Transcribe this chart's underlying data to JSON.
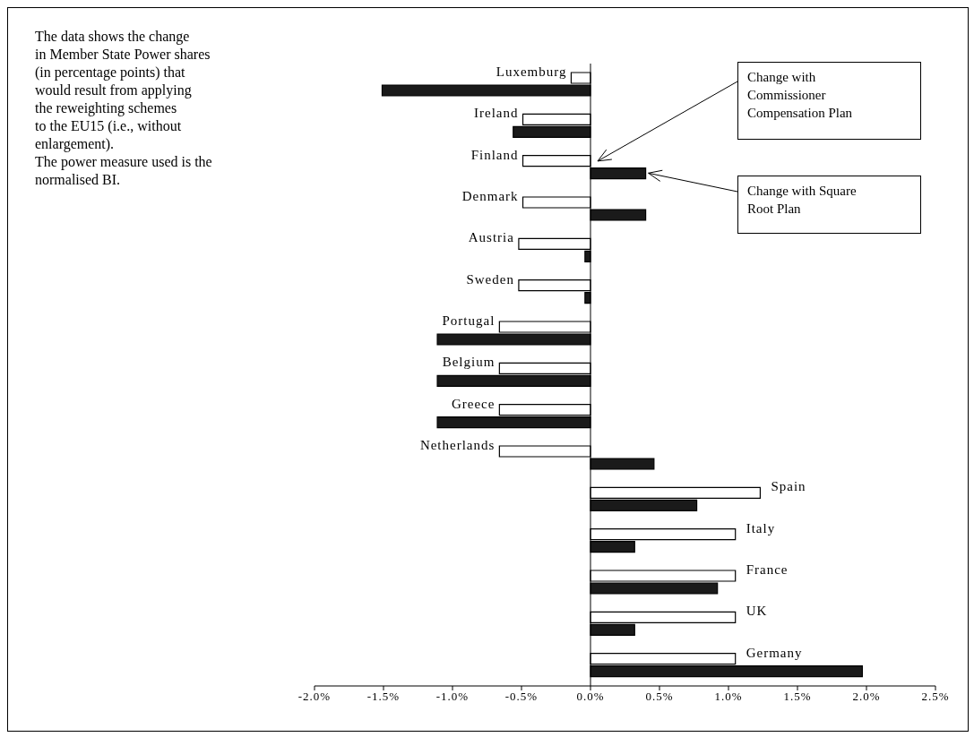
{
  "chart_data": {
    "type": "bar",
    "orientation": "horizontal",
    "categories": [
      "Luxemburg",
      "Ireland",
      "Finland",
      "Denmark",
      "Austria",
      "Sweden",
      "Portugal",
      "Belgium",
      "Greece",
      "Netherlands",
      "Spain",
      "Italy",
      "France",
      "UK",
      "Germany"
    ],
    "series": [
      {
        "name": "Change with Commissioner Compensation Plan",
        "color": "#ffffff",
        "values": [
          -0.14,
          -0.49,
          -0.49,
          -0.49,
          -0.52,
          -0.52,
          -0.66,
          -0.66,
          -0.66,
          -0.66,
          1.23,
          1.05,
          1.05,
          1.05,
          1.05
        ]
      },
      {
        "name": "Change with Square Root Plan",
        "color": "#1a1a1a",
        "values": [
          -1.51,
          -0.56,
          0.4,
          0.4,
          -0.04,
          -0.04,
          -1.11,
          -1.11,
          -1.11,
          0.46,
          0.77,
          0.32,
          0.92,
          0.32,
          1.97
        ]
      }
    ],
    "xlim": [
      -2.0,
      2.5
    ],
    "xticks": [
      {
        "value": -2.0,
        "label": "-2.0%"
      },
      {
        "value": -1.5,
        "label": "-1.5%"
      },
      {
        "value": -1.0,
        "label": "-1.0%"
      },
      {
        "value": -0.5,
        "label": "-0.5%"
      },
      {
        "value": 0,
        "label": "0.0%"
      },
      {
        "value": 0.5,
        "label": "0.5%"
      },
      {
        "value": 1.0,
        "label": "1.0%"
      },
      {
        "value": 1.5,
        "label": "1.5%"
      },
      {
        "value": 2.0,
        "label": "2.0%"
      },
      {
        "value": 2.5,
        "label": "2.5%"
      }
    ],
    "legend": "top right",
    "ref_lines": [
      {
        "axis": "x",
        "value": 0,
        "color": "#000000"
      }
    ],
    "grid": false,
    "annotations": [
      "The data shows the change\nin Member State Power shares\n(in percentage points) that\nwould result from applying\nthe reweighting schemes\nto the EU15 (i.e., without\nenlargement).\nThe power measure used is the\nnormalised BI."
    ]
  }
}
